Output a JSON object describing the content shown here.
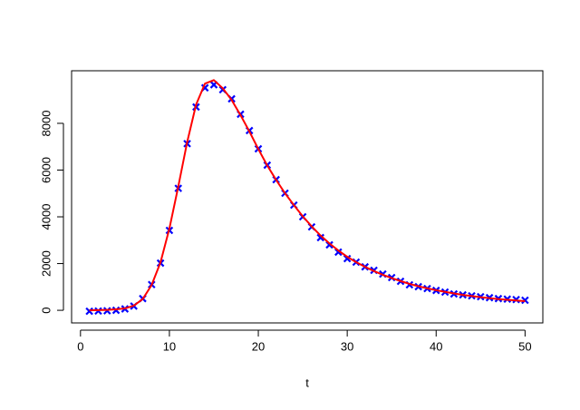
{
  "chart_data": {
    "type": "scatter",
    "x_label": "t",
    "x": [
      1,
      2,
      3,
      4,
      5,
      6,
      7,
      8,
      9,
      10,
      11,
      12,
      13,
      14,
      15,
      16,
      17,
      18,
      19,
      20,
      21,
      22,
      23,
      24,
      25,
      26,
      27,
      28,
      29,
      30,
      31,
      32,
      33,
      34,
      35,
      36,
      37,
      38,
      39,
      40,
      41,
      42,
      43,
      44,
      45,
      46,
      47,
      48,
      49,
      50
    ],
    "series": [
      {
        "style": "points",
        "color": "#0000ff",
        "values": [
          -40,
          -30,
          -20,
          0,
          60,
          180,
          500,
          1100,
          2020,
          3420,
          5220,
          7130,
          8700,
          9520,
          9650,
          9440,
          9050,
          8390,
          7690,
          6910,
          6210,
          5590,
          5010,
          4500,
          4000,
          3570,
          3110,
          2800,
          2490,
          2210,
          2060,
          1860,
          1710,
          1550,
          1400,
          1240,
          1090,
          1010,
          930,
          850,
          780,
          700,
          660,
          620,
          580,
          540,
          500,
          480,
          460,
          430
        ]
      },
      {
        "style": "line",
        "color": "#ff0000",
        "values": [
          0,
          10,
          20,
          40,
          80,
          200,
          480,
          1080,
          2050,
          3500,
          5300,
          7200,
          8800,
          9700,
          9850,
          9500,
          9000,
          8350,
          7650,
          6900,
          6200,
          5580,
          5010,
          4500,
          4020,
          3590,
          3200,
          2860,
          2560,
          2290,
          2060,
          1860,
          1680,
          1520,
          1380,
          1250,
          1130,
          1030,
          940,
          860,
          790,
          720,
          660,
          610,
          560,
          520,
          480,
          450,
          420,
          390
        ]
      }
    ],
    "xlim": [
      -1,
      52
    ],
    "xticks": [
      0,
      10,
      20,
      30,
      40,
      50
    ],
    "ylim": [
      -540,
      10250
    ],
    "yticks": [
      0,
      2000,
      4000,
      6000,
      8000
    ]
  }
}
